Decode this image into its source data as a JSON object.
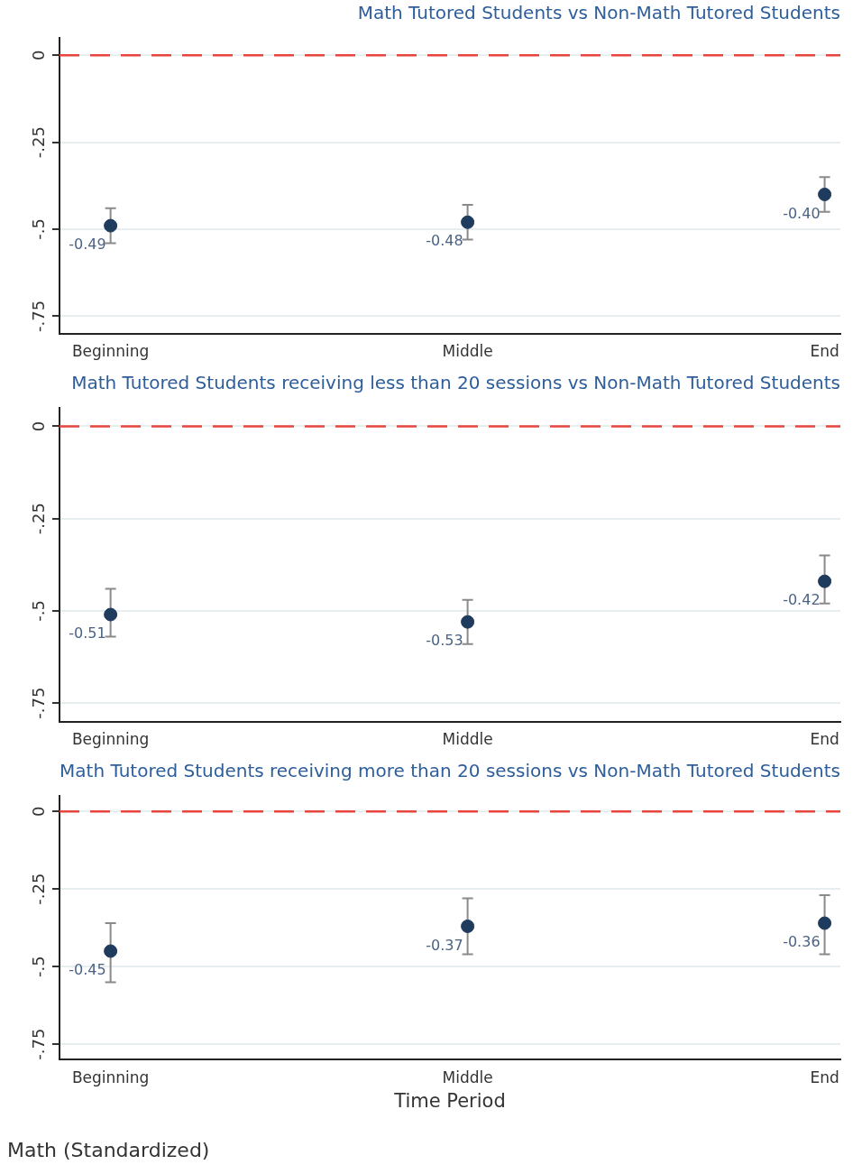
{
  "chart_data": [
    {
      "type": "scatter",
      "title": "Math Tutored Students vs Non-Math Tutored Students",
      "categories": [
        "Beginning",
        "Middle",
        "End"
      ],
      "series": [
        {
          "color": "#1f3b5e",
          "values": [
            -0.49,
            -0.48,
            -0.4
          ],
          "errors": [
            [
              -0.54,
              -0.44
            ],
            [
              -0.53,
              -0.43
            ],
            [
              -0.45,
              -0.35
            ]
          ],
          "value_labels": [
            "-0.49",
            "-0.48",
            "-0.40"
          ]
        }
      ],
      "ylim": [
        -0.8,
        0.05
      ],
      "yticks": [
        {
          "value": 0,
          "label": "0"
        },
        {
          "value": -0.25,
          "label": "-.25"
        },
        {
          "value": -0.5,
          "label": "-.5"
        },
        {
          "value": -0.75,
          "label": "-.75"
        }
      ],
      "ref_lines": [
        {
          "axis": "y",
          "value": 0,
          "color": "#e8453c",
          "line_style": "dashed"
        }
      ],
      "grid": "y",
      "legend": false,
      "marker": "circle"
    },
    {
      "type": "scatter",
      "title": "Math Tutored Students receiving less than 20 sessions vs Non-Math Tutored Students",
      "categories": [
        "Beginning",
        "Middle",
        "End"
      ],
      "series": [
        {
          "color": "#1f3b5e",
          "values": [
            -0.51,
            -0.53,
            -0.42
          ],
          "errors": [
            [
              -0.57,
              -0.44
            ],
            [
              -0.59,
              -0.47
            ],
            [
              -0.48,
              -0.35
            ]
          ],
          "value_labels": [
            "-0.51",
            "-0.53",
            "-0.42"
          ]
        }
      ],
      "ylim": [
        -0.8,
        0.05
      ],
      "yticks": [
        {
          "value": 0,
          "label": "0"
        },
        {
          "value": -0.25,
          "label": "-.25"
        },
        {
          "value": -0.5,
          "label": "-.5"
        },
        {
          "value": -0.75,
          "label": "-.75"
        }
      ],
      "ref_lines": [
        {
          "axis": "y",
          "value": 0,
          "color": "#e8453c",
          "line_style": "dashed"
        }
      ],
      "grid": "y",
      "legend": false,
      "marker": "circle"
    },
    {
      "type": "scatter",
      "title": "Math Tutored Students receiving more than 20 sessions vs Non-Math Tutored Students",
      "xlabel": "Time Period",
      "categories": [
        "Beginning",
        "Middle",
        "End"
      ],
      "series": [
        {
          "color": "#1f3b5e",
          "values": [
            -0.45,
            -0.37,
            -0.36
          ],
          "errors": [
            [
              -0.55,
              -0.36
            ],
            [
              -0.46,
              -0.28
            ],
            [
              -0.46,
              -0.27
            ]
          ],
          "value_labels": [
            "-0.45",
            "-0.37",
            "-0.36"
          ]
        }
      ],
      "ylim": [
        -0.8,
        0.05
      ],
      "yticks": [
        {
          "value": 0,
          "label": "0"
        },
        {
          "value": -0.25,
          "label": "-.25"
        },
        {
          "value": -0.5,
          "label": "-.5"
        },
        {
          "value": -0.75,
          "label": "-.75"
        }
      ],
      "ref_lines": [
        {
          "axis": "y",
          "value": 0,
          "color": "#e8453c",
          "line_style": "dashed"
        }
      ],
      "grid": "y",
      "legend": false,
      "marker": "circle",
      "annotations": [
        "Math (Standardized)"
      ]
    }
  ]
}
